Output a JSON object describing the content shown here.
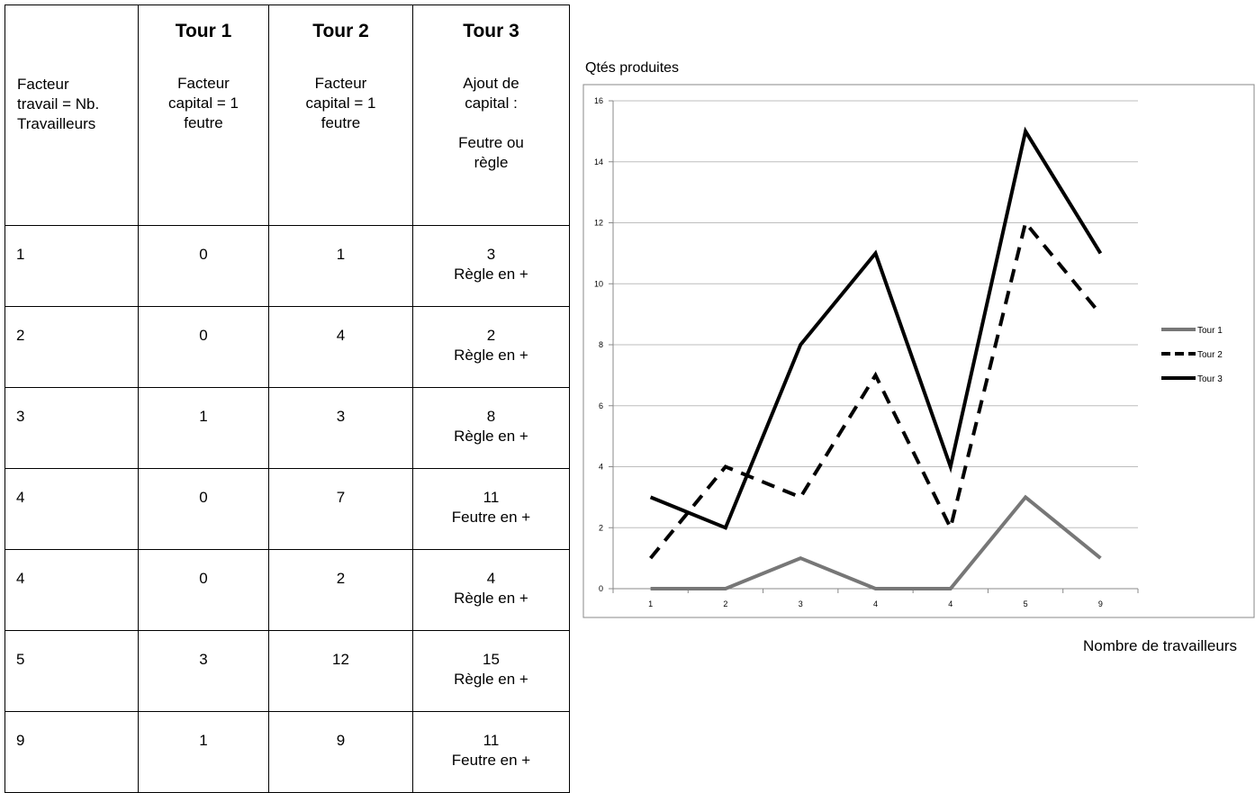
{
  "table": {
    "col0_header": "Facteur\ntravail = Nb.\nTravailleurs",
    "round_headers": [
      {
        "title": "Tour 1",
        "desc": "Facteur\ncapital = 1\nfeutre"
      },
      {
        "title": "Tour 2",
        "desc": "Facteur\ncapital = 1\nfeutre"
      },
      {
        "title": "Tour 3",
        "desc": "Ajout de\ncapital :\n\nFeutre ou\nrègle"
      }
    ],
    "rows": [
      {
        "workers": "1",
        "tour1": "0",
        "tour2": "1",
        "tour3": "3",
        "tour3_note": "Règle en +"
      },
      {
        "workers": "2",
        "tour1": "0",
        "tour2": "4",
        "tour3": "2",
        "tour3_note": "Règle en +"
      },
      {
        "workers": "3",
        "tour1": "1",
        "tour2": "3",
        "tour3": "8",
        "tour3_note": "Règle en +"
      },
      {
        "workers": "4",
        "tour1": "0",
        "tour2": "7",
        "tour3": "11",
        "tour3_note": "Feutre en +"
      },
      {
        "workers": "4",
        "tour1": "0",
        "tour2": "2",
        "tour3": "4",
        "tour3_note": "Règle en +"
      },
      {
        "workers": "5",
        "tour1": "3",
        "tour2": "12",
        "tour3": "15",
        "tour3_note": "Règle en +"
      },
      {
        "workers": "9",
        "tour1": "1",
        "tour2": "9",
        "tour3": "11",
        "tour3_note": "Feutre en +"
      }
    ]
  },
  "chart_data": {
    "type": "line",
    "title": "",
    "ylabel": "Qtés produites",
    "xlabel": "Nombre de travailleurs",
    "categories": [
      "1",
      "2",
      "3",
      "4",
      "4",
      "5",
      "9"
    ],
    "series": [
      {
        "name": "Tour 1",
        "values": [
          0,
          0,
          1,
          0,
          0,
          3,
          1
        ],
        "color": "#777777",
        "style": "solid"
      },
      {
        "name": "Tour 2",
        "values": [
          1,
          4,
          3,
          7,
          2,
          12,
          9
        ],
        "color": "#000000",
        "style": "dashed"
      },
      {
        "name": "Tour 3",
        "values": [
          3,
          2,
          8,
          11,
          4,
          15,
          11
        ],
        "color": "#000000",
        "style": "solid"
      }
    ],
    "ylim": [
      0,
      16
    ],
    "yticks": [
      0,
      2,
      4,
      6,
      8,
      10,
      12,
      14,
      16
    ],
    "grid": true,
    "legend": "right"
  }
}
